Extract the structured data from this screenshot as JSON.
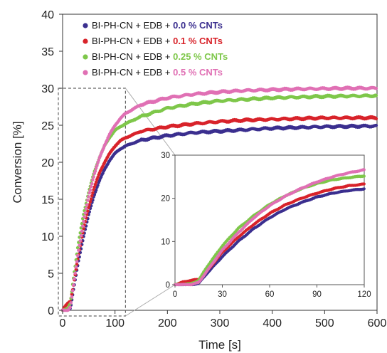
{
  "chart_data": {
    "type": "scatter",
    "xlabel": "Time [s]",
    "ylabel": "Conversion [%]",
    "xlim": [
      0,
      600
    ],
    "ylim": [
      0,
      40
    ],
    "xticks": [
      "0",
      "100",
      "200",
      "300",
      "400",
      "500",
      "600"
    ],
    "yticks": [
      "0",
      "5",
      "10",
      "15",
      "20",
      "25",
      "30",
      "35",
      "40"
    ],
    "grid": false,
    "legend_position": "top-left",
    "series": [
      {
        "label_prefix": "BI-PH-CN + EDB + ",
        "label_highlight": "0.0 % CNTs",
        "color": "#3b2f8f",
        "x": [
          0,
          10,
          15,
          20,
          30,
          40,
          50,
          60,
          70,
          80,
          90,
          100,
          110,
          120,
          150,
          200,
          250,
          300,
          350,
          400,
          450,
          500,
          550,
          600
        ],
        "y": [
          0,
          0,
          0.3,
          2.5,
          6.5,
          10,
          13,
          15.5,
          17.5,
          19,
          20.3,
          21.2,
          21.8,
          22.2,
          23,
          23.6,
          24,
          24.2,
          24.4,
          24.6,
          24.7,
          24.8,
          24.85,
          24.9
        ]
      },
      {
        "label_prefix": "BI-PH-CN + EDB + ",
        "label_highlight": "0.1 % CNTs",
        "color": "#d8232a",
        "x": [
          0,
          5,
          10,
          15,
          20,
          30,
          40,
          50,
          60,
          70,
          80,
          90,
          100,
          110,
          120,
          150,
          200,
          250,
          300,
          350,
          400,
          450,
          500,
          550,
          600
        ],
        "y": [
          0,
          0.6,
          1,
          1.2,
          3,
          7.5,
          11,
          14,
          16.5,
          18.5,
          20,
          21.2,
          22.2,
          22.9,
          23.3,
          24.2,
          24.8,
          25.2,
          25.5,
          25.7,
          25.8,
          25.9,
          26,
          26,
          26
        ]
      },
      {
        "label_prefix": "BI-PH-CN + EDB + ",
        "label_highlight": "0.25 % CNTs",
        "color": "#7ec74a",
        "x": [
          0,
          10,
          15,
          20,
          30,
          40,
          50,
          60,
          70,
          80,
          90,
          100,
          110,
          120,
          150,
          200,
          250,
          300,
          350,
          400,
          450,
          500,
          550,
          600
        ],
        "y": [
          0,
          0.2,
          1,
          4,
          9,
          13,
          16,
          18.6,
          20.6,
          22.2,
          23.4,
          24.3,
          24.8,
          25.2,
          26.2,
          27.3,
          27.9,
          28.3,
          28.5,
          28.7,
          28.8,
          28.9,
          28.95,
          29
        ]
      },
      {
        "label_prefix": "BI-PH-CN + EDB + ",
        "label_highlight": "0.5 % CNTs",
        "color": "#e070b4",
        "x": [
          0,
          10,
          15,
          20,
          30,
          40,
          50,
          60,
          70,
          80,
          90,
          100,
          110,
          120,
          150,
          200,
          250,
          300,
          350,
          400,
          450,
          500,
          550,
          600
        ],
        "y": [
          0,
          0,
          0.5,
          3,
          8,
          12,
          15.5,
          18.3,
          20.5,
          22.3,
          23.8,
          25,
          25.9,
          26.6,
          27.8,
          28.7,
          29.2,
          29.5,
          29.7,
          29.8,
          29.9,
          29.95,
          30,
          30
        ]
      }
    ],
    "inset": {
      "xlim": [
        0,
        120
      ],
      "ylim": [
        0,
        30
      ],
      "xticks": [
        "0",
        "30",
        "60",
        "90",
        "120"
      ],
      "yticks": [
        "0",
        "10",
        "20",
        "30"
      ],
      "zoom_region_x": [
        0,
        120
      ],
      "zoom_region_y": [
        0,
        30
      ]
    }
  }
}
